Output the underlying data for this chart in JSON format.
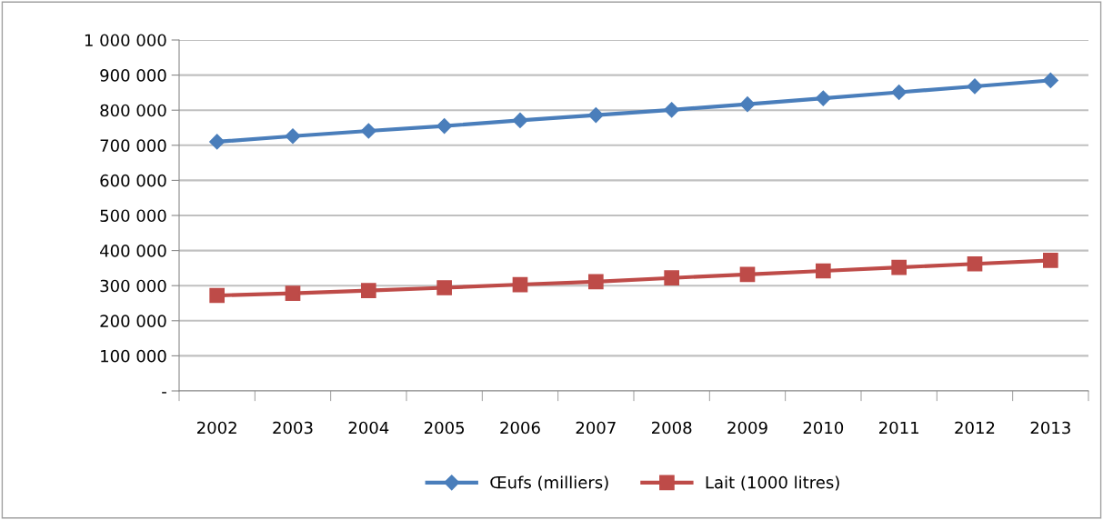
{
  "chart_data": {
    "type": "line",
    "categories": [
      "2002",
      "2003",
      "2004",
      "2005",
      "2006",
      "2007",
      "2008",
      "2009",
      "2010",
      "2011",
      "2012",
      "2013"
    ],
    "series": [
      {
        "name": "Œufs (milliers)",
        "color": "#4a7ebb",
        "marker": "diamond",
        "values": [
          710000,
          726000,
          741000,
          755000,
          771000,
          786000,
          801000,
          817000,
          834000,
          851000,
          868000,
          885000
        ]
      },
      {
        "name": "Lait (1000 litres)",
        "color": "#be4b48",
        "marker": "square",
        "values": [
          272000,
          278000,
          286000,
          294000,
          303000,
          311000,
          322000,
          332000,
          342000,
          352000,
          362000,
          372000
        ]
      }
    ],
    "ylim": [
      0,
      1000000
    ],
    "yticks": [
      {
        "value": 0,
        "label": "-"
      },
      {
        "value": 100000,
        "label": "100 000"
      },
      {
        "value": 200000,
        "label": "200 000"
      },
      {
        "value": 300000,
        "label": "300 000"
      },
      {
        "value": 400000,
        "label": "400 000"
      },
      {
        "value": 500000,
        "label": "500 000"
      },
      {
        "value": 600000,
        "label": "600 000"
      },
      {
        "value": 700000,
        "label": "700 000"
      },
      {
        "value": 800000,
        "label": "800 000"
      },
      {
        "value": 900000,
        "label": "900 000"
      },
      {
        "value": 1000000,
        "label": "1 000 000"
      }
    ],
    "grid": "y",
    "legend": "bottom",
    "line_style": "solid"
  }
}
